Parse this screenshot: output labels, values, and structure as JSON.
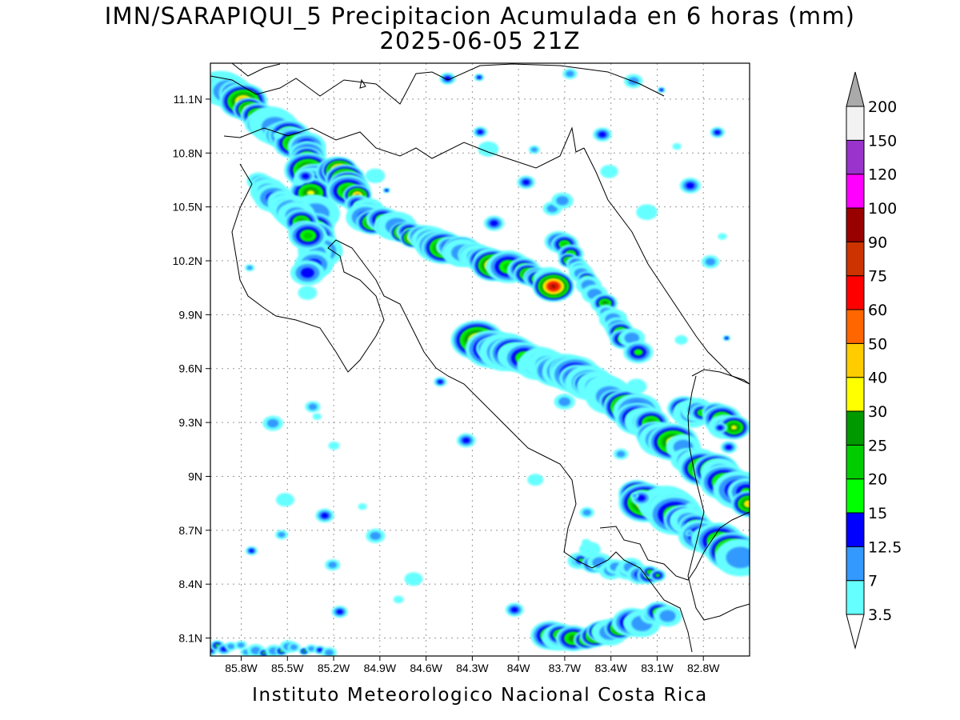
{
  "title": {
    "line1": "IMN/SARAPIQUI_5 Precipitacion Acumulada en 6 horas (mm)",
    "line2": "2025-06-05 21Z"
  },
  "footer": "Instituto Meteorologico Nacional Costa Rica",
  "map": {
    "lon_range": [
      -86.0,
      -82.5
    ],
    "lat_range": [
      8.0,
      11.3
    ],
    "lon_ticks": [
      {
        "value": -85.8,
        "label": "85.8W"
      },
      {
        "value": -85.5,
        "label": "85.5W"
      },
      {
        "value": -85.2,
        "label": "85.2W"
      },
      {
        "value": -84.9,
        "label": "84.9W"
      },
      {
        "value": -84.6,
        "label": "84.6W"
      },
      {
        "value": -84.3,
        "label": "84.3W"
      },
      {
        "value": -84.0,
        "label": "84W"
      },
      {
        "value": -83.7,
        "label": "83.7W"
      },
      {
        "value": -83.4,
        "label": "83.4W"
      },
      {
        "value": -83.1,
        "label": "83.1W"
      },
      {
        "value": -82.8,
        "label": "82.8W"
      }
    ],
    "lat_ticks": [
      {
        "value": 11.1,
        "label": "11.1N"
      },
      {
        "value": 10.8,
        "label": "10.8N"
      },
      {
        "value": 10.5,
        "label": "10.5N"
      },
      {
        "value": 10.2,
        "label": "10.2N"
      },
      {
        "value": 9.9,
        "label": "9.9N"
      },
      {
        "value": 9.6,
        "label": "9.6N"
      },
      {
        "value": 9.3,
        "label": "9.3N"
      },
      {
        "value": 9.0,
        "label": "9N"
      },
      {
        "value": 8.7,
        "label": "8.7N"
      },
      {
        "value": 8.4,
        "label": "8.4N"
      },
      {
        "value": 8.1,
        "label": "8.1N"
      }
    ],
    "grid": "dotted"
  },
  "colorbar": {
    "levels": [
      {
        "label": "3.5",
        "color": "#66ffff"
      },
      {
        "label": "7",
        "color": "#3399ff"
      },
      {
        "label": "12.5",
        "color": "#0000ff"
      },
      {
        "label": "15",
        "color": "#00ff00"
      },
      {
        "label": "20",
        "color": "#00cc00"
      },
      {
        "label": "25",
        "color": "#009900"
      },
      {
        "label": "30",
        "color": "#ffff00"
      },
      {
        "label": "40",
        "color": "#ffcc00"
      },
      {
        "label": "50",
        "color": "#ff6600"
      },
      {
        "label": "60",
        "color": "#ff0000"
      },
      {
        "label": "75",
        "color": "#cc3300"
      },
      {
        "label": "90",
        "color": "#990000"
      },
      {
        "label": "100",
        "color": "#ff00ff"
      },
      {
        "label": "120",
        "color": "#9933cc"
      },
      {
        "label": "150",
        "color": "#f2f2f2"
      },
      {
        "label": "200",
        "color": "#aaaaaa"
      }
    ]
  }
}
